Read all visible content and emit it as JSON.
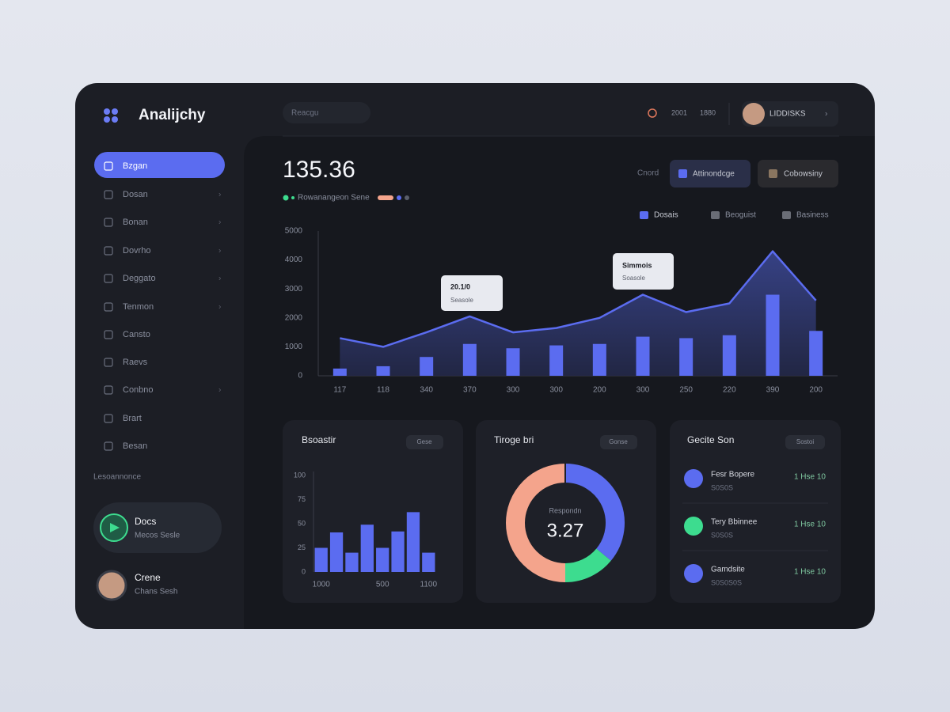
{
  "sidebar": {
    "brand": "Analijchy",
    "nav": [
      "Bzgan",
      "Dosan",
      "Bonan",
      "Dovrho",
      "Deggato",
      "Tenmon",
      "Cansto",
      "Raevs",
      "Conbno",
      "Brart",
      "Besan"
    ],
    "section": "Lesoannonce",
    "promo": {
      "title": "Docs",
      "subtitle": "Mecos Sesle"
    },
    "user": {
      "name": "Crene",
      "subtitle": "Chans Sesh"
    }
  },
  "header": {
    "search": "Reacgu",
    "stats": [
      "2001",
      "1880"
    ],
    "profile": "LIDDISKS",
    "total": "135.36",
    "total_caption": "Rowanangeon Sene",
    "filter_label": "Cnord",
    "buttons": [
      "Attinondcge",
      "Cobowsiny"
    ],
    "legend": [
      "Dosais",
      "Beoguist",
      "Basiness"
    ]
  },
  "tooltips": [
    {
      "title": "20.1/0",
      "text": "Seasole"
    },
    {
      "title": "Simmois",
      "text": "Soasole"
    }
  ],
  "cards": [
    {
      "title": "Bsoastir",
      "tag": "Gese"
    },
    {
      "title": "Tiroge bri",
      "tag": "Gonse"
    },
    {
      "title": "Gecite Son",
      "tag": "Sostoi"
    }
  ],
  "list": [
    {
      "name": "Fesr Bopere",
      "sub": "S0S0S",
      "value": "1 Hse 10"
    },
    {
      "name": "Tery Bbinnee",
      "sub": "S0S0S",
      "value": "1 Hse 10"
    },
    {
      "name": "Gamdsite",
      "sub": "S0S0S0S",
      "value": "1 Hse 10"
    }
  ],
  "chart_data": [
    {
      "type": "combo",
      "categories": [
        "117",
        "118",
        "340",
        "370",
        "300",
        "300",
        "200",
        "300",
        "250",
        "220",
        "390",
        "200"
      ],
      "series": [
        {
          "type": "area",
          "color": "#5b6cf0",
          "values": [
            1300,
            1000,
            1500,
            2050,
            1500,
            1650,
            2000,
            2800,
            2200,
            2500,
            4300,
            2600
          ]
        },
        {
          "type": "bar",
          "color": "#5b6cf0",
          "values": [
            250,
            330,
            650,
            1100,
            950,
            1050,
            1100,
            1350,
            1300,
            1400,
            2800,
            1550
          ]
        }
      ],
      "ylim": [
        0,
        5000
      ],
      "yticks": [
        0,
        1000,
        2000,
        3000,
        4000,
        5000
      ],
      "grid": false
    },
    {
      "type": "bar",
      "categories": [
        "1000",
        null,
        null,
        null,
        "500",
        null,
        null,
        "1100"
      ],
      "values": [
        25,
        41,
        20,
        49,
        25,
        42,
        62,
        20
      ],
      "color": "#5b6cf0",
      "ylim": [
        0,
        100
      ],
      "yticks": [
        0,
        25,
        50,
        75,
        100
      ],
      "grid": false
    },
    {
      "type": "pie",
      "values": [
        36,
        14,
        50
      ],
      "colors": [
        "#5b6cf0",
        "#3ddc8f",
        "#f4a48c"
      ],
      "center_label": "Respondn",
      "center_value": "3.27"
    }
  ]
}
